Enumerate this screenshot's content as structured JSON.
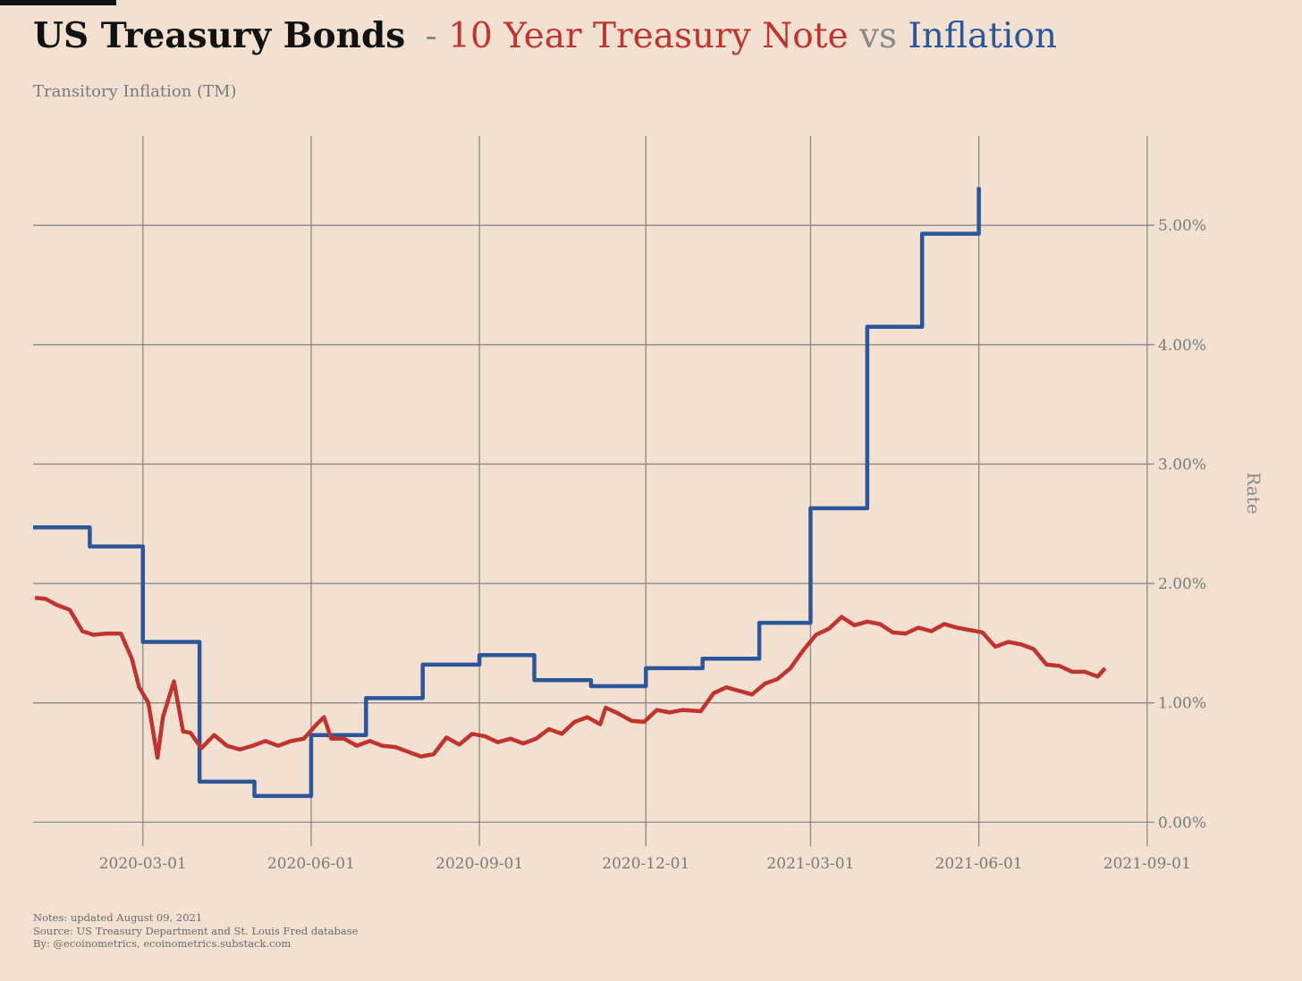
{
  "header": {
    "title_bold": "US Treasury Bonds",
    "title_dash": "-",
    "title_series1": "10 Year Treasury Note",
    "title_vs": "vs",
    "title_series2": "Inflation",
    "subtitle": "Transitory Inflation (TM)"
  },
  "footer": {
    "notes": "Notes: updated August 09, 2021",
    "source": "Source: US Treasury Department and St. Louis Fred database",
    "by": "By: @ecoinometrics, ecoinometrics.substack.com"
  },
  "colors": {
    "background": "#f2e0d0",
    "treasury": "#c0332e",
    "inflation": "#2b569b",
    "grid": "#8a8a8a",
    "text": "#7a7a7a"
  },
  "chart_data": {
    "type": "line",
    "title": "US Treasury Bonds - 10 Year Treasury Note vs Inflation",
    "subtitle": "Transitory Inflation (TM)",
    "ylabel": "Rate",
    "xlabel": "",
    "y_axis_side": "right",
    "ylim": [
      -0.2,
      5.75
    ],
    "xlim": [
      "2020-01-01",
      "2021-09-05"
    ],
    "grid": true,
    "legend": "none (series named in title)",
    "x_ticks": [
      "2020-03-01",
      "2020-06-01",
      "2020-09-01",
      "2020-12-01",
      "2021-03-01",
      "2021-06-01",
      "2021-09-01"
    ],
    "y_ticks": [
      0,
      1,
      2,
      3,
      4,
      5
    ],
    "y_tick_labels": [
      "0.00%",
      "1.00%",
      "2.00%",
      "3.00%",
      "4.00%",
      "5.00%"
    ],
    "series": [
      {
        "name": "Inflation",
        "style": "step",
        "x": [
          "2020-01-01",
          "2020-02-01",
          "2020-03-01",
          "2020-04-01",
          "2020-05-01",
          "2020-06-01",
          "2020-07-01",
          "2020-08-01",
          "2020-09-01",
          "2020-10-01",
          "2020-11-01",
          "2020-12-01",
          "2021-01-01",
          "2021-02-01",
          "2021-03-01",
          "2021-04-01",
          "2021-05-01",
          "2021-06-01"
        ],
        "values": [
          2.47,
          2.31,
          1.51,
          0.34,
          0.22,
          0.73,
          1.04,
          1.32,
          1.4,
          1.19,
          1.14,
          1.29,
          1.37,
          1.67,
          2.63,
          4.15,
          4.93,
          5.32
        ]
      },
      {
        "name": "10 Year Treasury Note",
        "style": "line",
        "x": [
          "2020-01-02",
          "2020-01-08",
          "2020-01-14",
          "2020-01-21",
          "2020-01-28",
          "2020-02-03",
          "2020-02-10",
          "2020-02-18",
          "2020-02-24",
          "2020-02-28",
          "2020-03-04",
          "2020-03-09",
          "2020-03-12",
          "2020-03-18",
          "2020-03-23",
          "2020-03-27",
          "2020-04-02",
          "2020-04-09",
          "2020-04-16",
          "2020-04-23",
          "2020-04-30",
          "2020-05-07",
          "2020-05-14",
          "2020-05-21",
          "2020-05-28",
          "2020-06-04",
          "2020-06-08",
          "2020-06-12",
          "2020-06-19",
          "2020-06-26",
          "2020-07-03",
          "2020-07-10",
          "2020-07-17",
          "2020-07-24",
          "2020-07-31",
          "2020-08-07",
          "2020-08-14",
          "2020-08-21",
          "2020-08-28",
          "2020-09-04",
          "2020-09-11",
          "2020-09-18",
          "2020-09-25",
          "2020-10-02",
          "2020-10-09",
          "2020-10-16",
          "2020-10-23",
          "2020-10-30",
          "2020-11-06",
          "2020-11-09",
          "2020-11-16",
          "2020-11-23",
          "2020-11-30",
          "2020-12-07",
          "2020-12-14",
          "2020-12-21",
          "2020-12-31",
          "2021-01-07",
          "2021-01-14",
          "2021-01-21",
          "2021-01-28",
          "2021-02-04",
          "2021-02-11",
          "2021-02-18",
          "2021-02-25",
          "2021-03-04",
          "2021-03-11",
          "2021-03-18",
          "2021-03-25",
          "2021-04-01",
          "2021-04-08",
          "2021-04-15",
          "2021-04-22",
          "2021-04-29",
          "2021-05-06",
          "2021-05-13",
          "2021-05-20",
          "2021-05-27",
          "2021-06-03",
          "2021-06-10",
          "2021-06-17",
          "2021-06-24",
          "2021-07-01",
          "2021-07-08",
          "2021-07-15",
          "2021-07-22",
          "2021-07-29",
          "2021-08-05",
          "2021-08-09"
        ],
        "values": [
          1.88,
          1.87,
          1.82,
          1.78,
          1.6,
          1.57,
          1.58,
          1.58,
          1.37,
          1.13,
          1.0,
          0.54,
          0.88,
          1.18,
          0.76,
          0.75,
          0.62,
          0.73,
          0.64,
          0.61,
          0.64,
          0.68,
          0.64,
          0.68,
          0.7,
          0.82,
          0.88,
          0.7,
          0.7,
          0.64,
          0.68,
          0.64,
          0.63,
          0.59,
          0.55,
          0.57,
          0.71,
          0.65,
          0.74,
          0.72,
          0.67,
          0.7,
          0.66,
          0.7,
          0.78,
          0.74,
          0.84,
          0.88,
          0.82,
          0.96,
          0.91,
          0.85,
          0.84,
          0.94,
          0.92,
          0.94,
          0.93,
          1.08,
          1.13,
          1.1,
          1.07,
          1.16,
          1.2,
          1.29,
          1.44,
          1.57,
          1.62,
          1.72,
          1.65,
          1.68,
          1.66,
          1.59,
          1.58,
          1.63,
          1.6,
          1.66,
          1.63,
          1.61,
          1.59,
          1.47,
          1.51,
          1.49,
          1.45,
          1.32,
          1.31,
          1.26,
          1.26,
          1.22,
          1.29
        ]
      }
    ]
  }
}
